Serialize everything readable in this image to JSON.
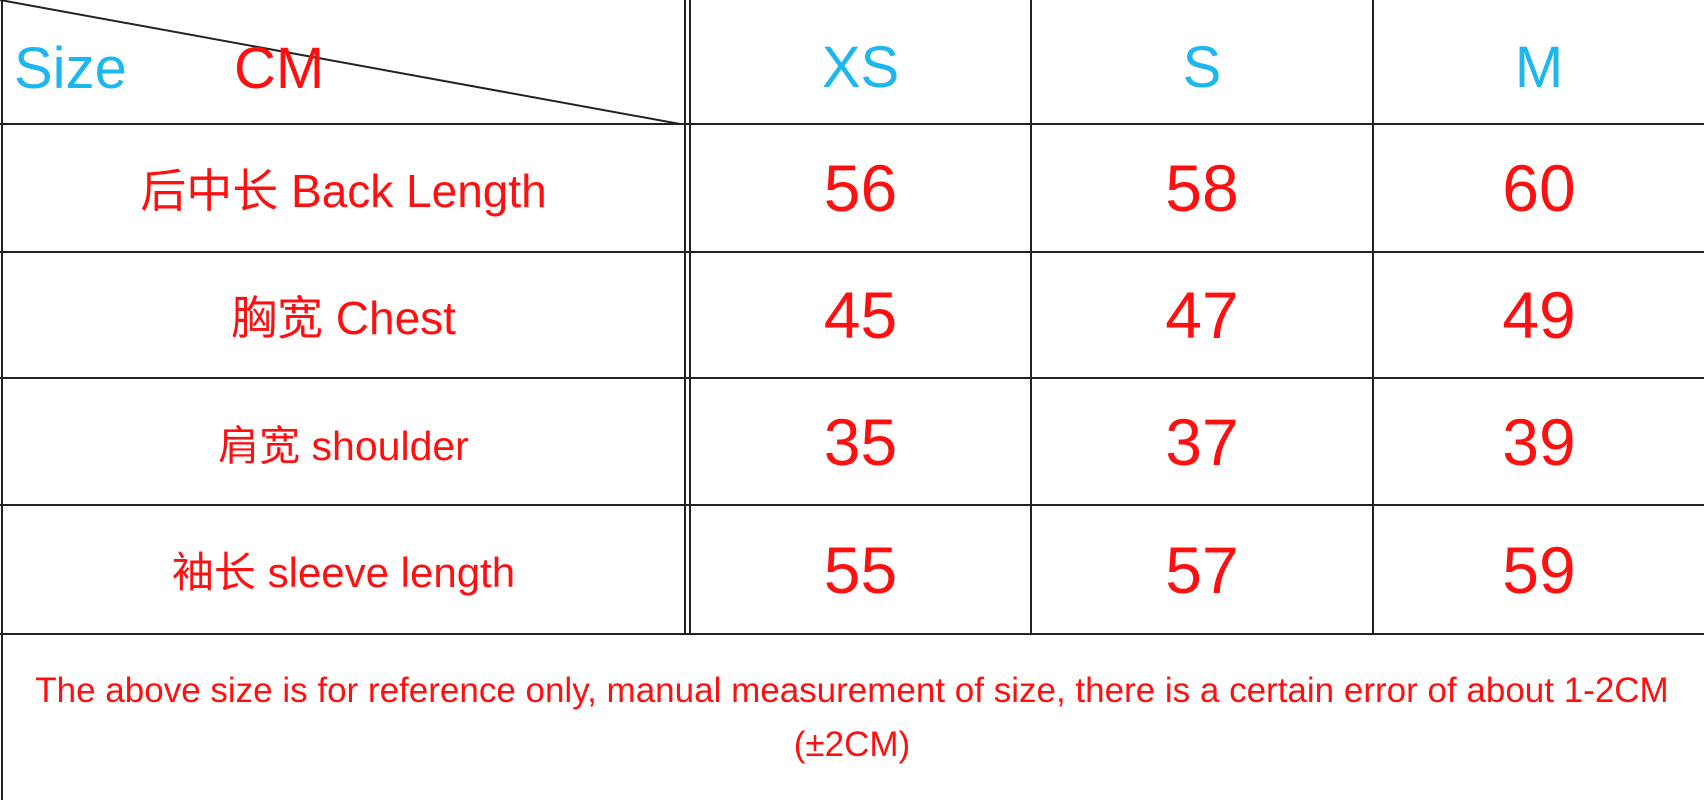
{
  "header": {
    "size_label": "Size",
    "unit_label": "CM",
    "columns": [
      "XS",
      "S",
      "M"
    ]
  },
  "rows": [
    {
      "label": "后中长 Back Length",
      "values": [
        "56",
        "58",
        "60"
      ]
    },
    {
      "label": "胸宽 Chest",
      "values": [
        "45",
        "47",
        "49"
      ]
    },
    {
      "label": "肩宽 shoulder",
      "values": [
        "35",
        "37",
        "39"
      ]
    },
    {
      "label": "袖长 sleeve length",
      "values": [
        "55",
        "57",
        "59"
      ]
    }
  ],
  "footer": {
    "note": "The above size is for reference only, manual measurement of size, there is a certain error of about 1-2CM (±2CM)"
  },
  "colors": {
    "header_text": "#1eb6ee",
    "value_text": "#ff1010",
    "grid": "#222222"
  }
}
